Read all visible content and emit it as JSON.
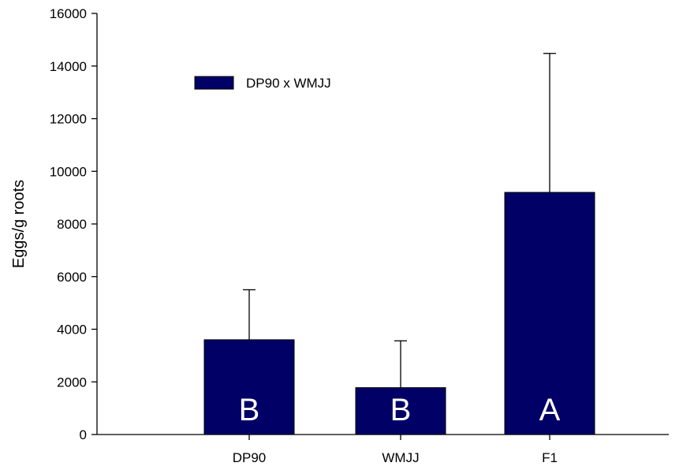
{
  "chart_data": {
    "type": "bar",
    "categories": [
      "DP90",
      "WMJJ",
      "F1"
    ],
    "series": [
      {
        "name": "DP90 x WMJJ",
        "values": [
          3600,
          1780,
          9200
        ],
        "error_upper": [
          5500,
          3560,
          14480
        ],
        "group_letters": [
          "B",
          "B",
          "A"
        ]
      }
    ],
    "xlabel": "",
    "ylabel": "Eggs/g roots",
    "ylim": [
      0,
      16000
    ],
    "yticks": [
      0,
      2000,
      4000,
      6000,
      8000,
      10000,
      12000,
      14000,
      16000
    ],
    "grid": false,
    "legend_position": "top-left",
    "colors": {
      "bar": "#000066",
      "axis": "#000000",
      "letter": "#ffffff"
    }
  }
}
